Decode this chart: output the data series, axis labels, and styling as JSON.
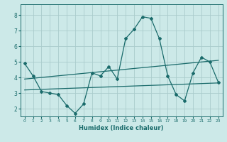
{
  "title": "",
  "xlabel": "Humidex (Indice chaleur)",
  "bg_color": "#cce9e8",
  "grid_color": "#aacccc",
  "line_color": "#1a6b6b",
  "xlim": [
    -0.5,
    23.5
  ],
  "ylim": [
    1.5,
    8.7
  ],
  "xticks": [
    0,
    1,
    2,
    3,
    4,
    5,
    6,
    7,
    8,
    9,
    10,
    11,
    12,
    13,
    14,
    15,
    16,
    17,
    18,
    19,
    20,
    21,
    22,
    23
  ],
  "yticks": [
    2,
    3,
    4,
    5,
    6,
    7,
    8
  ],
  "series1_x": [
    0,
    1,
    2,
    3,
    4,
    5,
    6,
    7,
    8,
    9,
    10,
    11,
    12,
    13,
    14,
    15,
    16,
    17,
    18,
    19,
    20,
    21,
    22,
    23
  ],
  "series1_y": [
    4.9,
    4.1,
    3.1,
    3.0,
    2.9,
    2.2,
    1.7,
    2.3,
    4.3,
    4.1,
    4.7,
    3.9,
    6.5,
    7.1,
    7.9,
    7.8,
    6.5,
    4.1,
    2.9,
    2.5,
    4.3,
    5.3,
    5.0,
    3.7
  ],
  "series2_x": [
    0,
    23
  ],
  "series2_y": [
    3.2,
    3.65
  ],
  "series3_x": [
    0,
    23
  ],
  "series3_y": [
    3.9,
    5.1
  ]
}
